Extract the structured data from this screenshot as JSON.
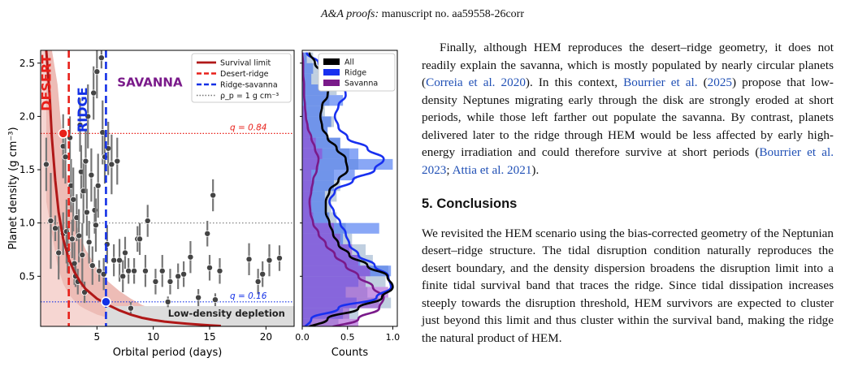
{
  "header": {
    "journal": "A&A proofs:",
    "manuscript": "manuscript no. aa59558-26corr"
  },
  "text": {
    "para1": [
      {
        "t": "Finally, although HEM reproduces the desert–ridge geometry, it does not readily explain the savanna, which is mostly populated by nearly circular planets ("
      },
      {
        "t": "Correia et al. 2020",
        "cite": true
      },
      {
        "t": "). In this context, "
      },
      {
        "t": "Bourrier et al.",
        "cite": true
      },
      {
        "t": " ("
      },
      {
        "t": "2025",
        "cite": true
      },
      {
        "t": ") propose that low-density Neptunes migrating early through the disk are strongly eroded at short periods, while those left farther out populate the savanna. By contrast, planets delivered later to the ridge through HEM would be less affected by early high-energy irradiation and could therefore survive at short periods ("
      },
      {
        "t": "Bourrier et al. 2023",
        "cite": true
      },
      {
        "t": "; "
      },
      {
        "t": "Attia et al. 2021",
        "cite": true
      },
      {
        "t": ")."
      }
    ],
    "section_title": "5. Conclusions",
    "para2": "We revisited the HEM scenario using the bias-corrected geometry of the Neptunian desert–ridge structure. The tidal disruption condition naturally reproduces the desert boundary, and the density dispersion broadens the disruption limit into a finite tidal survival band that traces the ridge. Since tidal dissipation increases steeply towards the disruption threshold, HEM survivors are expected to cluster just beyond this limit and thus cluster within the survival band, making the ridge the natural product of HEM."
  },
  "colors": {
    "survival": "#b01818",
    "desert_ridge": "#e8201a",
    "ridge_savanna": "#1330e6",
    "density_line": "#777777",
    "all": "#000000",
    "ridge": "#1830f0",
    "savanna": "#7a1a8a",
    "desert_fill": "#f6d6d2",
    "depletion_fill": "#dcdcdc",
    "point": "#444444",
    "err": "#777777"
  },
  "chart_data": [
    {
      "type": "scatter",
      "xlabel": "Orbital period (days)",
      "ylabel": "Planet density (g cm⁻³)",
      "xlim": [
        0,
        22.5
      ],
      "ylim": [
        0.03,
        2.62
      ],
      "xticks": [
        5,
        10,
        15,
        20
      ],
      "yticks": [
        0.5,
        1.0,
        1.5,
        2.0,
        2.5
      ],
      "region_labels": [
        "DESERT",
        "RIDGE",
        "SAVANNA"
      ],
      "legend": [
        "Survival limit",
        "Desert-ridge",
        "Ridge-savanna",
        "ρ_p = 1 g cm⁻³"
      ],
      "legend_position": "top-right",
      "lines": {
        "desert_ridge_x": 2.5,
        "ridge_savanna_x": 5.8,
        "density_y": 1.0,
        "q084_y": 1.84,
        "q016_y": 0.26
      },
      "annotations": {
        "q_high": "q = 0.84",
        "q_low": "q = 0.16",
        "depletion": "Low-density depletion"
      },
      "survival_limit": [
        [
          0.5,
          2.62
        ],
        [
          0.8,
          2.2
        ],
        [
          1.0,
          1.8
        ],
        [
          1.3,
          1.4
        ],
        [
          1.6,
          1.1
        ],
        [
          2.0,
          0.85
        ],
        [
          2.5,
          0.66
        ],
        [
          3.0,
          0.54
        ],
        [
          3.5,
          0.45
        ],
        [
          4.0,
          0.38
        ],
        [
          5.0,
          0.29
        ],
        [
          6.0,
          0.23
        ],
        [
          7.0,
          0.18
        ],
        [
          8.0,
          0.14
        ],
        [
          9.0,
          0.11
        ],
        [
          10.0,
          0.09
        ],
        [
          11.0,
          0.075
        ],
        [
          12.0,
          0.064
        ],
        [
          13.0,
          0.055
        ],
        [
          14.0,
          0.047
        ],
        [
          15.0,
          0.04
        ],
        [
          16.0,
          0.034
        ]
      ],
      "survival_band_upper": [
        [
          0.5,
          2.62
        ],
        [
          1.0,
          2.62
        ],
        [
          1.5,
          2.3
        ],
        [
          2.0,
          1.7
        ],
        [
          2.5,
          1.32
        ],
        [
          3.0,
          1.06
        ],
        [
          3.5,
          0.88
        ],
        [
          4.0,
          0.75
        ],
        [
          5.0,
          0.57
        ],
        [
          6.0,
          0.45
        ],
        [
          7.0,
          0.36
        ],
        [
          8.0,
          0.29
        ],
        [
          9.0,
          0.23
        ],
        [
          10.0,
          0.19
        ],
        [
          11.0,
          0.16
        ],
        [
          12.0,
          0.13
        ],
        [
          13.0,
          0.11
        ],
        [
          14.0,
          0.09
        ],
        [
          15.0,
          0.08
        ],
        [
          16.0,
          0.06
        ]
      ],
      "survival_band_lower": [
        [
          0.5,
          1.2
        ],
        [
          1.0,
          0.9
        ],
        [
          1.5,
          0.6
        ],
        [
          2.0,
          0.43
        ],
        [
          2.5,
          0.33
        ],
        [
          3.0,
          0.27
        ],
        [
          3.5,
          0.22
        ],
        [
          4.0,
          0.19
        ],
        [
          5.0,
          0.14
        ],
        [
          6.0,
          0.11
        ],
        [
          7.0,
          0.09
        ],
        [
          8.0,
          0.07
        ],
        [
          9.0,
          0.06
        ],
        [
          10.0,
          0.05
        ],
        [
          11.0,
          0.04
        ],
        [
          12.0,
          0.035
        ]
      ],
      "highlight_points": [
        {
          "x": 2.0,
          "y": 1.84,
          "color": "#e8201a"
        },
        {
          "x": 5.8,
          "y": 0.26,
          "color": "#1330e6"
        }
      ],
      "points": [
        {
          "x": 0.5,
          "y": 1.55,
          "e": 0.25
        },
        {
          "x": 0.9,
          "y": 1.02,
          "e": 0.45
        },
        {
          "x": 1.3,
          "y": 0.95,
          "e": 0.12
        },
        {
          "x": 1.6,
          "y": 0.72,
          "e": 0.25
        },
        {
          "x": 2.0,
          "y": 1.72,
          "e": 0.3
        },
        {
          "x": 2.0,
          "y": 0.9,
          "e": 0.2
        },
        {
          "x": 2.2,
          "y": 1.62,
          "e": 0.25
        },
        {
          "x": 2.3,
          "y": 0.92,
          "e": 0.3
        },
        {
          "x": 2.4,
          "y": 0.75,
          "e": 0.22
        },
        {
          "x": 2.6,
          "y": 1.8,
          "e": 0.2
        },
        {
          "x": 2.7,
          "y": 1.35,
          "e": 0.25
        },
        {
          "x": 2.8,
          "y": 0.85,
          "e": 0.18
        },
        {
          "x": 2.9,
          "y": 1.22,
          "e": 0.3
        },
        {
          "x": 3.0,
          "y": 0.62,
          "e": 0.2
        },
        {
          "x": 3.1,
          "y": 0.5,
          "e": 0.1
        },
        {
          "x": 3.2,
          "y": 1.05,
          "e": 0.22
        },
        {
          "x": 3.3,
          "y": 0.45,
          "e": 0.12
        },
        {
          "x": 3.4,
          "y": 0.88,
          "e": 0.25
        },
        {
          "x": 3.5,
          "y": 1.92,
          "e": 0.25
        },
        {
          "x": 3.6,
          "y": 1.48,
          "e": 0.25
        },
        {
          "x": 3.7,
          "y": 0.7,
          "e": 0.3
        },
        {
          "x": 3.8,
          "y": 1.3,
          "e": 0.3
        },
        {
          "x": 3.9,
          "y": 0.35,
          "e": 0.1
        },
        {
          "x": 4.0,
          "y": 1.58,
          "e": 0.3
        },
        {
          "x": 4.1,
          "y": 1.1,
          "e": 0.22
        },
        {
          "x": 4.2,
          "y": 2.0,
          "e": 0.3
        },
        {
          "x": 4.3,
          "y": 0.82,
          "e": 0.2
        },
        {
          "x": 4.5,
          "y": 1.45,
          "e": 0.25
        },
        {
          "x": 4.6,
          "y": 0.6,
          "e": 0.18
        },
        {
          "x": 4.7,
          "y": 2.22,
          "e": 0.25
        },
        {
          "x": 4.8,
          "y": 1.12,
          "e": 0.22
        },
        {
          "x": 4.9,
          "y": 0.98,
          "e": 0.25
        },
        {
          "x": 5.0,
          "y": 2.42,
          "e": 0.25
        },
        {
          "x": 5.1,
          "y": 1.35,
          "e": 0.3
        },
        {
          "x": 5.2,
          "y": 0.55,
          "e": 0.1
        },
        {
          "x": 5.4,
          "y": 2.55,
          "e": 0.1
        },
        {
          "x": 5.5,
          "y": 1.85,
          "e": 0.3
        },
        {
          "x": 5.6,
          "y": 0.52,
          "e": 0.15
        },
        {
          "x": 5.7,
          "y": 1.62,
          "e": 0.25
        },
        {
          "x": 5.9,
          "y": 0.8,
          "e": 0.18
        },
        {
          "x": 6.0,
          "y": 1.7,
          "e": 0.25
        },
        {
          "x": 6.3,
          "y": 1.55,
          "e": 0.28
        },
        {
          "x": 6.5,
          "y": 0.65,
          "e": 0.15
        },
        {
          "x": 6.8,
          "y": 1.58,
          "e": 0.22
        },
        {
          "x": 7.0,
          "y": 0.65,
          "e": 0.2
        },
        {
          "x": 7.3,
          "y": 0.5,
          "e": 0.15
        },
        {
          "x": 7.5,
          "y": 0.72,
          "e": 0.15
        },
        {
          "x": 7.8,
          "y": 0.55,
          "e": 0.12
        },
        {
          "x": 8.0,
          "y": 0.2,
          "e": 0.06
        },
        {
          "x": 8.3,
          "y": 0.55,
          "e": 0.12
        },
        {
          "x": 8.6,
          "y": 0.85,
          "e": 0.12
        },
        {
          "x": 8.8,
          "y": 0.85,
          "e": 0.15
        },
        {
          "x": 9.3,
          "y": 0.55,
          "e": 0.15
        },
        {
          "x": 9.5,
          "y": 1.02,
          "e": 0.15
        },
        {
          "x": 10.2,
          "y": 0.45,
          "e": 0.12
        },
        {
          "x": 10.8,
          "y": 0.55,
          "e": 0.15
        },
        {
          "x": 11.3,
          "y": 0.26,
          "e": 0.05
        },
        {
          "x": 11.5,
          "y": 0.45,
          "e": 0.12
        },
        {
          "x": 12.2,
          "y": 0.5,
          "e": 0.12
        },
        {
          "x": 12.7,
          "y": 0.52,
          "e": 0.12
        },
        {
          "x": 13.3,
          "y": 0.68,
          "e": 0.15
        },
        {
          "x": 14.0,
          "y": 0.3,
          "e": 0.08
        },
        {
          "x": 14.8,
          "y": 0.9,
          "e": 0.12
        },
        {
          "x": 15.0,
          "y": 0.58,
          "e": 0.12
        },
        {
          "x": 15.3,
          "y": 1.26,
          "e": 0.15
        },
        {
          "x": 15.5,
          "y": 0.28,
          "e": 0.06
        },
        {
          "x": 15.9,
          "y": 0.55,
          "e": 0.12
        },
        {
          "x": 18.5,
          "y": 0.66,
          "e": 0.15
        },
        {
          "x": 19.3,
          "y": 0.45,
          "e": 0.12
        },
        {
          "x": 19.7,
          "y": 0.52,
          "e": 0.12
        },
        {
          "x": 20.3,
          "y": 0.65,
          "e": 0.15
        },
        {
          "x": 21.2,
          "y": 0.67,
          "e": 0.12
        }
      ]
    },
    {
      "type": "bar",
      "orientation": "horizontal",
      "xlabel": "Counts",
      "xlim": [
        0,
        1.05
      ],
      "xticks": [
        0.0,
        0.5,
        1.0
      ],
      "legend": [
        "All",
        "Ridge",
        "Savanna"
      ],
      "legend_position": "top-right",
      "bin_edges": [
        0.0,
        0.1,
        0.2,
        0.3,
        0.4,
        0.5,
        0.6,
        0.7,
        0.8,
        0.9,
        1.0,
        1.1,
        1.2,
        1.3,
        1.4,
        1.5,
        1.6,
        1.7,
        1.8,
        1.9,
        2.0,
        2.1,
        2.2,
        2.3,
        2.4,
        2.5,
        2.6
      ],
      "series": [
        {
          "name": "All",
          "values": [
            0.4,
            0.62,
            0.98,
            0.72,
            0.92,
            0.95,
            0.78,
            0.7,
            0.55,
            0.48,
            0.38,
            0.32,
            0.38,
            0.42,
            0.35,
            0.62,
            0.52,
            0.42,
            0.28,
            0.35,
            0.25,
            0.3,
            0.38,
            0.32,
            0.18,
            0.12
          ]
        },
        {
          "name": "Ridge",
          "values": [
            0.1,
            0.45,
            0.6,
            0.48,
            0.62,
            0.98,
            0.64,
            0.52,
            0.45,
            0.85,
            0.3,
            0.25,
            0.25,
            0.35,
            0.58,
            1.0,
            0.62,
            0.42,
            0.28,
            0.32,
            0.22,
            0.45,
            0.3,
            0.1,
            0.12,
            0.05
          ]
        },
        {
          "name": "Savanna",
          "values": [
            0.62,
            0.52,
            0.85,
            0.95,
            0.7,
            0.75,
            0.62,
            0.55,
            0.42,
            0.35,
            0.12,
            0.1,
            0.1,
            0.12,
            0.1,
            0.18,
            0.22,
            0.15,
            0.08,
            0.05,
            0.04,
            0.0,
            0.0,
            0.0,
            0.0,
            0.0
          ]
        }
      ],
      "kde": {
        "y": [
          0.0,
          0.1,
          0.2,
          0.3,
          0.4,
          0.5,
          0.6,
          0.7,
          0.8,
          0.9,
          1.0,
          1.1,
          1.2,
          1.3,
          1.4,
          1.5,
          1.6,
          1.7,
          1.8,
          1.9,
          2.0,
          2.1,
          2.2,
          2.3,
          2.4,
          2.5,
          2.6
        ],
        "All": [
          0.05,
          0.28,
          0.62,
          0.88,
          1.0,
          0.94,
          0.72,
          0.52,
          0.4,
          0.34,
          0.3,
          0.26,
          0.26,
          0.3,
          0.4,
          0.5,
          0.48,
          0.38,
          0.28,
          0.22,
          0.2,
          0.22,
          0.28,
          0.3,
          0.22,
          0.14,
          0.08
        ],
        "Ridge": [
          0.02,
          0.1,
          0.4,
          0.82,
          0.98,
          0.95,
          0.8,
          0.62,
          0.52,
          0.48,
          0.42,
          0.35,
          0.3,
          0.36,
          0.56,
          0.8,
          0.9,
          0.72,
          0.5,
          0.4,
          0.36,
          0.4,
          0.48,
          0.46,
          0.32,
          0.18,
          0.05
        ],
        "Savanna": [
          0.3,
          0.62,
          0.85,
          0.9,
          0.78,
          0.62,
          0.48,
          0.36,
          0.26,
          0.18,
          0.12,
          0.09,
          0.08,
          0.1,
          0.12,
          0.16,
          0.18,
          0.14,
          0.1,
          0.06,
          0.04,
          0.03,
          0.02,
          0.02,
          0.01,
          0.01,
          0.0
        ]
      }
    }
  ]
}
